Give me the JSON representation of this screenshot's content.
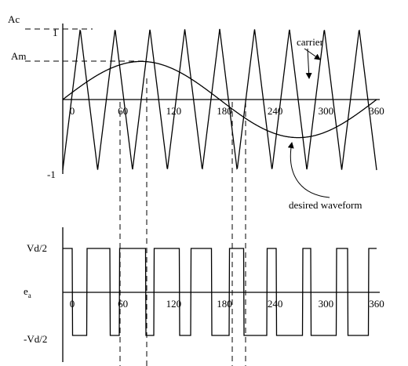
{
  "top_plot": {
    "amplitude_labels": {
      "carrier_peak": "Ac",
      "modulation_peak": "Am",
      "max": "1",
      "min": "-1"
    },
    "angle_labels": [
      "0",
      "60",
      "120",
      "180",
      "240",
      "300",
      "360"
    ],
    "annotations": {
      "carrier": "carrier",
      "desired": "desired waveform"
    }
  },
  "bottom_plot": {
    "level_labels": {
      "high": "Vd/2",
      "low": "-Vd/2"
    },
    "output_label": {
      "main": "e",
      "subscript": "a"
    },
    "angle_labels": [
      "0",
      "60",
      "120",
      "180",
      "240",
      "300",
      "360"
    ]
  }
}
